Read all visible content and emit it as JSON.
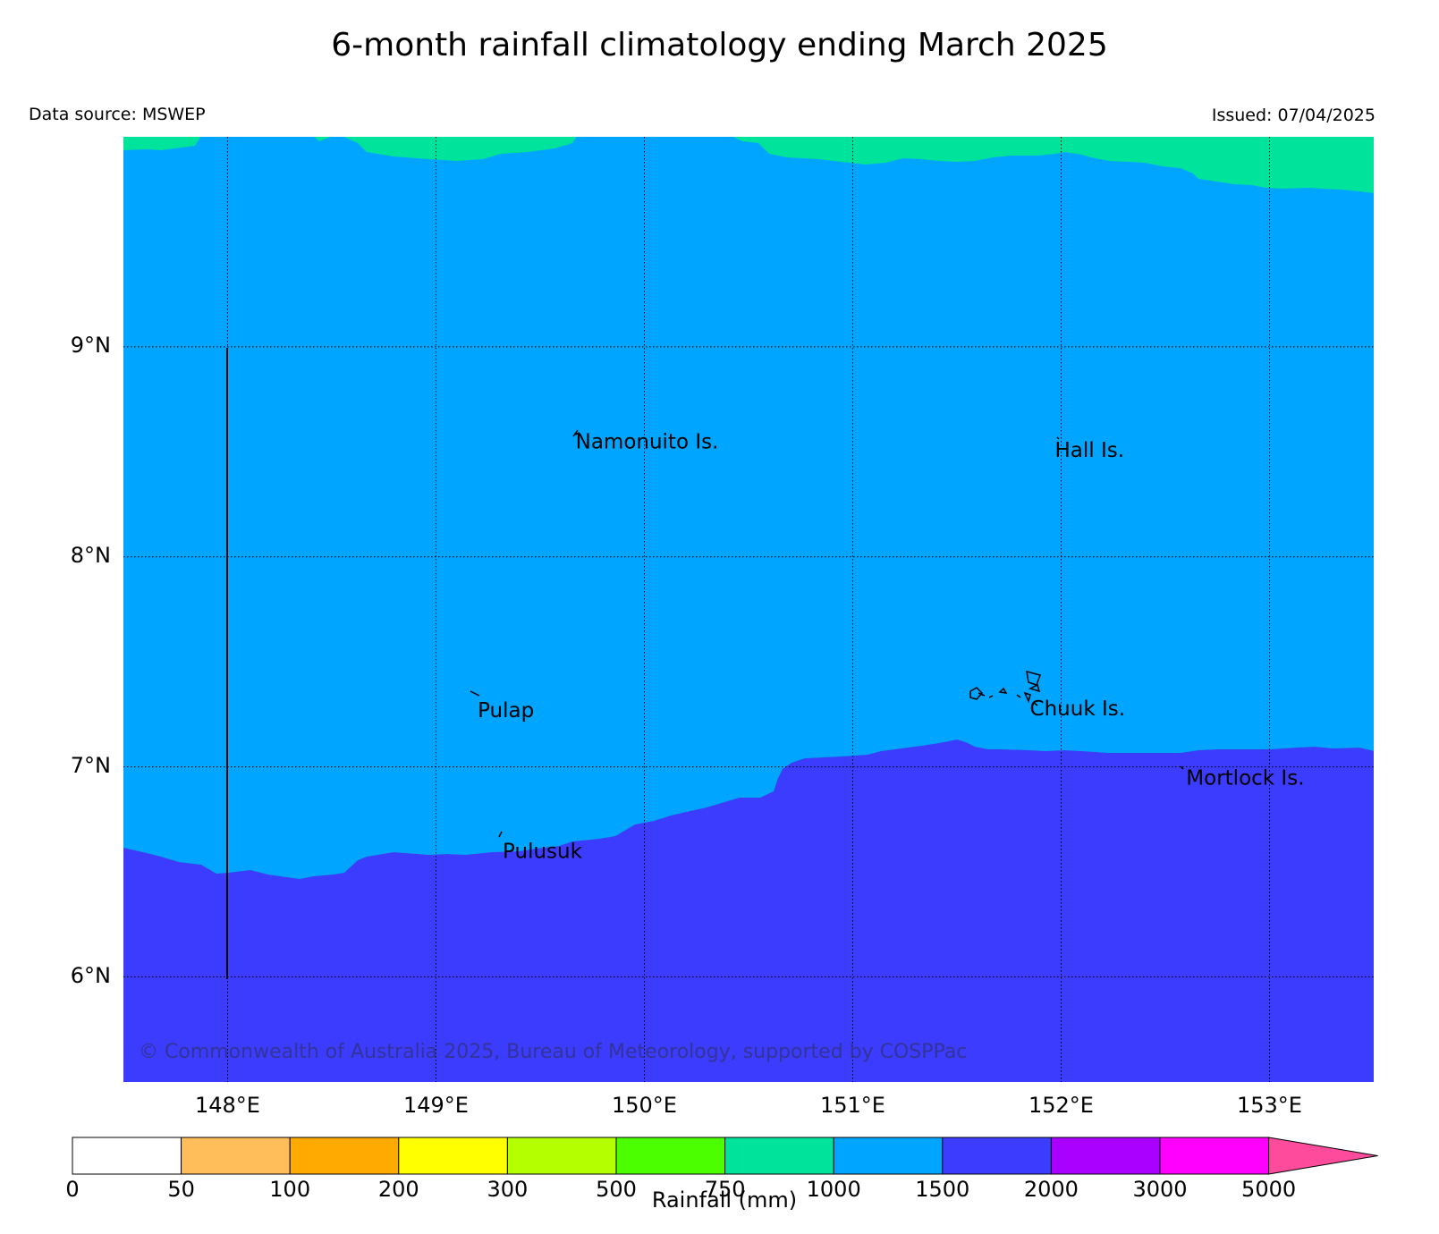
{
  "title": "6-month rainfall climatology ending March 2025",
  "data_source": "Data source: MSWEP",
  "issued": "Issued: 07/04/2025",
  "copyright": "© Commonwealth of Australia 2025, Bureau of Meteorology, supported by COSPPac",
  "map": {
    "lon_range": [
      147.5,
      153.5
    ],
    "lat_range": [
      5.5,
      10.0
    ],
    "gridlines": "dotted",
    "lat_ticks": [
      {
        "value": 9,
        "label": "9°N"
      },
      {
        "value": 8,
        "label": "8°N"
      },
      {
        "value": 7,
        "label": "7°N"
      },
      {
        "value": 6,
        "label": "6°N"
      }
    ],
    "lon_ticks": [
      {
        "value": 148,
        "label": "148°E"
      },
      {
        "value": 149,
        "label": "149°E"
      },
      {
        "value": 150,
        "label": "150°E"
      },
      {
        "value": 151,
        "label": "151°E"
      },
      {
        "value": 152,
        "label": "152°E"
      },
      {
        "value": 153,
        "label": "153°E"
      }
    ],
    "zones": [
      {
        "range": "750-1000",
        "color": "#00e39a"
      },
      {
        "range": "1000-1500",
        "color": "#00a5ff"
      },
      {
        "range": "1500-2000",
        "color": "#3c3cff"
      }
    ],
    "places": [
      {
        "name": "Namonuito Is.",
        "lon": 149.67,
        "lat": 8.55
      },
      {
        "name": "Hall Is.",
        "lon": 151.97,
        "lat": 8.51
      },
      {
        "name": "Pulap",
        "lon": 149.2,
        "lat": 7.27
      },
      {
        "name": "Chuuk Is.",
        "lon": 151.85,
        "lat": 7.28
      },
      {
        "name": "Mortlock Is.",
        "lon": 152.6,
        "lat": 6.95
      },
      {
        "name": "Pulusuk",
        "lon": 149.32,
        "lat": 6.6
      }
    ]
  },
  "colorbar": {
    "title": "Rainfall (mm)",
    "ticks": [
      "0",
      "50",
      "100",
      "200",
      "300",
      "500",
      "750",
      "1000",
      "1500",
      "2000",
      "3000",
      "5000"
    ],
    "colors": [
      "#ffffff",
      "#ffbe5a",
      "#ffaa00",
      "#ffff00",
      "#b4ff00",
      "#4bff00",
      "#00e39a",
      "#00a5ff",
      "#3c3cff",
      "#aa00ff",
      "#ff00ff"
    ],
    "extend_color": "#ff4b9b"
  }
}
